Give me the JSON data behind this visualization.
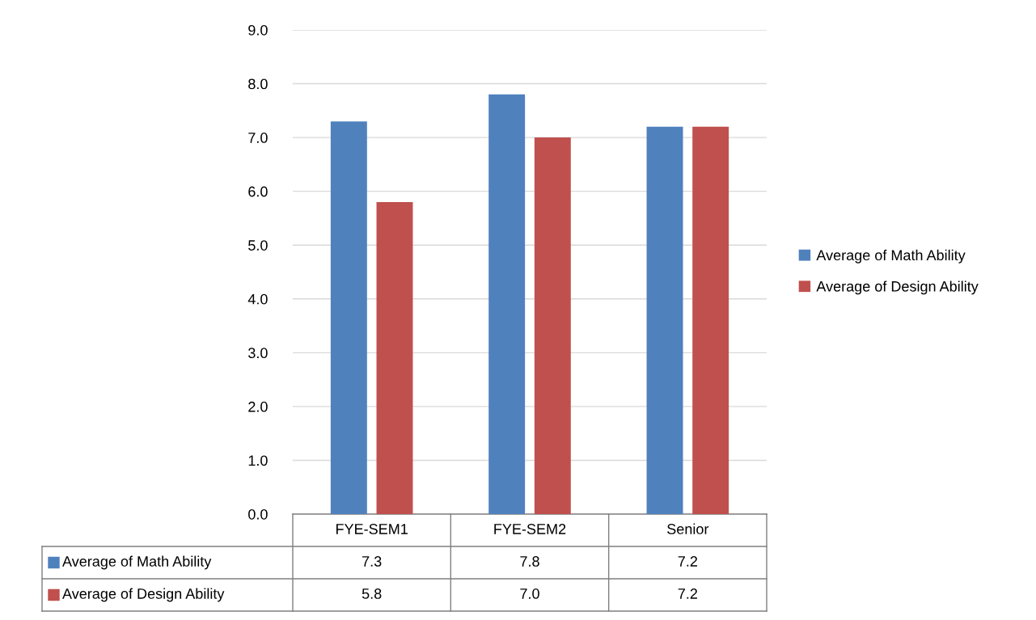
{
  "chart_data": {
    "type": "bar",
    "categories": [
      "FYE-SEM1",
      "FYE-SEM2",
      "Senior"
    ],
    "series": [
      {
        "name": "Average of Math Ability",
        "color": "#4f81bd",
        "values": [
          7.3,
          7.8,
          7.2
        ],
        "value_labels": [
          "7.3",
          "7.8",
          "7.2"
        ]
      },
      {
        "name": "Average of Design Ability",
        "color": "#c0504d",
        "values": [
          5.8,
          7.0,
          7.2
        ],
        "value_labels": [
          "5.8",
          "7.0",
          "7.2"
        ]
      }
    ],
    "ylim": [
      0,
      9
    ],
    "yticks": [
      {
        "value": 0,
        "label": "0.0"
      },
      {
        "value": 1,
        "label": "1.0"
      },
      {
        "value": 2,
        "label": "2.0"
      },
      {
        "value": 3,
        "label": "3.0"
      },
      {
        "value": 4,
        "label": "4.0"
      },
      {
        "value": 5,
        "label": "5.0"
      },
      {
        "value": 6,
        "label": "6.0"
      },
      {
        "value": 7,
        "label": "7.0"
      },
      {
        "value": 8,
        "label": "8.0"
      },
      {
        "value": 9,
        "label": "9.0"
      }
    ],
    "grid": "y",
    "legend": "right"
  }
}
